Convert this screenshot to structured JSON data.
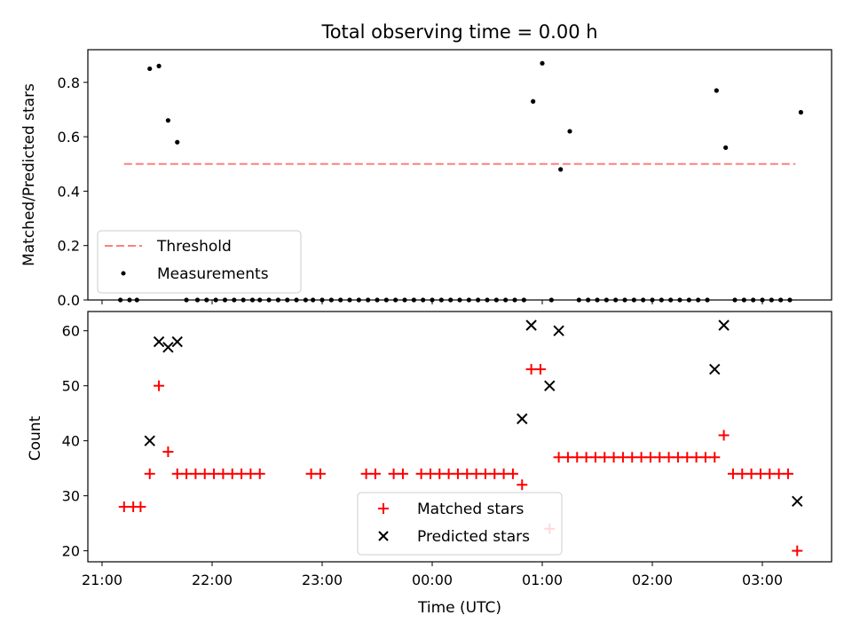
{
  "chart_data": [
    {
      "type": "scatter",
      "title": "Total observing time = 0.00 h",
      "ylabel": "Matched/Predicted stars",
      "xlabel": "",
      "ylim": [
        0,
        0.92
      ],
      "yticks": [
        0.0,
        0.2,
        0.4,
        0.6,
        0.8
      ],
      "ytick_labels": [
        "0.0",
        "0.2",
        "0.4",
        "0.6",
        "0.8"
      ],
      "legend_position": "lower-left",
      "threshold": {
        "name": "Threshold",
        "y": 0.5,
        "x_start": "21:12",
        "x_end": "03:18",
        "color": "#ff7f7f"
      },
      "series": [
        {
          "name": "Measurements",
          "color": "#000000",
          "x": [
            "21:10",
            "21:15",
            "21:19",
            "21:26",
            "21:31",
            "21:36",
            "21:41",
            "21:46",
            "21:52",
            "21:57",
            "22:02",
            "22:07",
            "22:12",
            "22:17",
            "22:22",
            "22:26",
            "22:31",
            "22:36",
            "22:41",
            "22:46",
            "22:51",
            "22:55",
            "23:00",
            "23:05",
            "23:10",
            "23:15",
            "23:20",
            "23:25",
            "23:30",
            "23:35",
            "23:40",
            "23:45",
            "23:50",
            "23:55",
            "00:00",
            "00:05",
            "00:10",
            "00:15",
            "00:20",
            "00:25",
            "00:30",
            "00:35",
            "00:40",
            "00:45",
            "00:50",
            "00:55",
            "01:00",
            "01:05",
            "01:10",
            "01:15",
            "01:20",
            "01:25",
            "01:30",
            "01:35",
            "01:40",
            "01:45",
            "01:50",
            "01:55",
            "02:00",
            "02:05",
            "02:10",
            "02:15",
            "02:20",
            "02:25",
            "02:30",
            "02:35",
            "02:40",
            "02:45",
            "02:50",
            "02:55",
            "03:00",
            "03:05",
            "03:10",
            "03:15",
            "03:21"
          ],
          "y": [
            0,
            0,
            0,
            0.85,
            0.86,
            0.66,
            0.58,
            0,
            0,
            0,
            0,
            0,
            0,
            0,
            0,
            0,
            0,
            0,
            0,
            0,
            0,
            0,
            0,
            0,
            0,
            0,
            0,
            0,
            0,
            0,
            0,
            0,
            0,
            0,
            0,
            0,
            0,
            0,
            0,
            0,
            0,
            0,
            0,
            0,
            0,
            0.73,
            0.87,
            0,
            0.48,
            0.62,
            0,
            0,
            0,
            0,
            0,
            0,
            0,
            0,
            0,
            0,
            0,
            0,
            0,
            0,
            0,
            0.77,
            0.56,
            0,
            0,
            0,
            0,
            0,
            0,
            0,
            0.69
          ]
        }
      ]
    },
    {
      "type": "scatter",
      "xlabel": "Time (UTC)",
      "ylabel": "Count",
      "ylim": [
        18,
        63.5
      ],
      "yticks": [
        20,
        30,
        40,
        50,
        60
      ],
      "ytick_labels": [
        "20",
        "30",
        "40",
        "50",
        "60"
      ],
      "xticks": [
        "21:00",
        "22:00",
        "23:00",
        "00:00",
        "01:00",
        "02:00",
        "03:00"
      ],
      "legend_position": "lower-center",
      "series": [
        {
          "name": "Matched stars",
          "marker": "plus",
          "color": "#ff0000",
          "x": [
            "21:12",
            "21:17",
            "21:21",
            "21:26",
            "21:31",
            "21:36",
            "21:41",
            "21:46",
            "21:51",
            "21:56",
            "22:01",
            "22:06",
            "22:11",
            "22:16",
            "22:21",
            "22:26",
            "22:54",
            "22:59",
            "23:24",
            "23:29",
            "23:39",
            "23:44",
            "23:54",
            "23:59",
            "00:04",
            "00:09",
            "00:14",
            "00:19",
            "00:24",
            "00:29",
            "00:34",
            "00:39",
            "00:44",
            "00:49",
            "00:54",
            "00:59",
            "01:04",
            "01:09",
            "01:14",
            "01:19",
            "01:24",
            "01:29",
            "01:34",
            "01:39",
            "01:44",
            "01:49",
            "01:54",
            "01:59",
            "02:04",
            "02:09",
            "02:14",
            "02:19",
            "02:24",
            "02:29",
            "02:34",
            "02:39",
            "02:44",
            "02:49",
            "02:54",
            "02:59",
            "03:04",
            "03:09",
            "03:14",
            "03:19"
          ],
          "y": [
            28,
            28,
            28,
            34,
            50,
            38,
            34,
            34,
            34,
            34,
            34,
            34,
            34,
            34,
            34,
            34,
            34,
            34,
            34,
            34,
            34,
            34,
            34,
            34,
            34,
            34,
            34,
            34,
            34,
            34,
            34,
            34,
            34,
            32,
            53,
            53,
            24,
            37,
            37,
            37,
            37,
            37,
            37,
            37,
            37,
            37,
            37,
            37,
            37,
            37,
            37,
            37,
            37,
            37,
            37,
            41,
            34,
            34,
            34,
            34,
            34,
            34,
            34,
            20
          ]
        },
        {
          "name": "Predicted stars",
          "marker": "x",
          "color": "#000000",
          "x": [
            "21:26",
            "21:31",
            "21:36",
            "21:41",
            "00:49",
            "00:54",
            "01:04",
            "01:09",
            "02:34",
            "02:39",
            "03:19"
          ],
          "y": [
            40,
            58,
            57,
            58,
            44,
            61,
            50,
            60,
            53,
            61,
            29
          ]
        }
      ]
    }
  ]
}
